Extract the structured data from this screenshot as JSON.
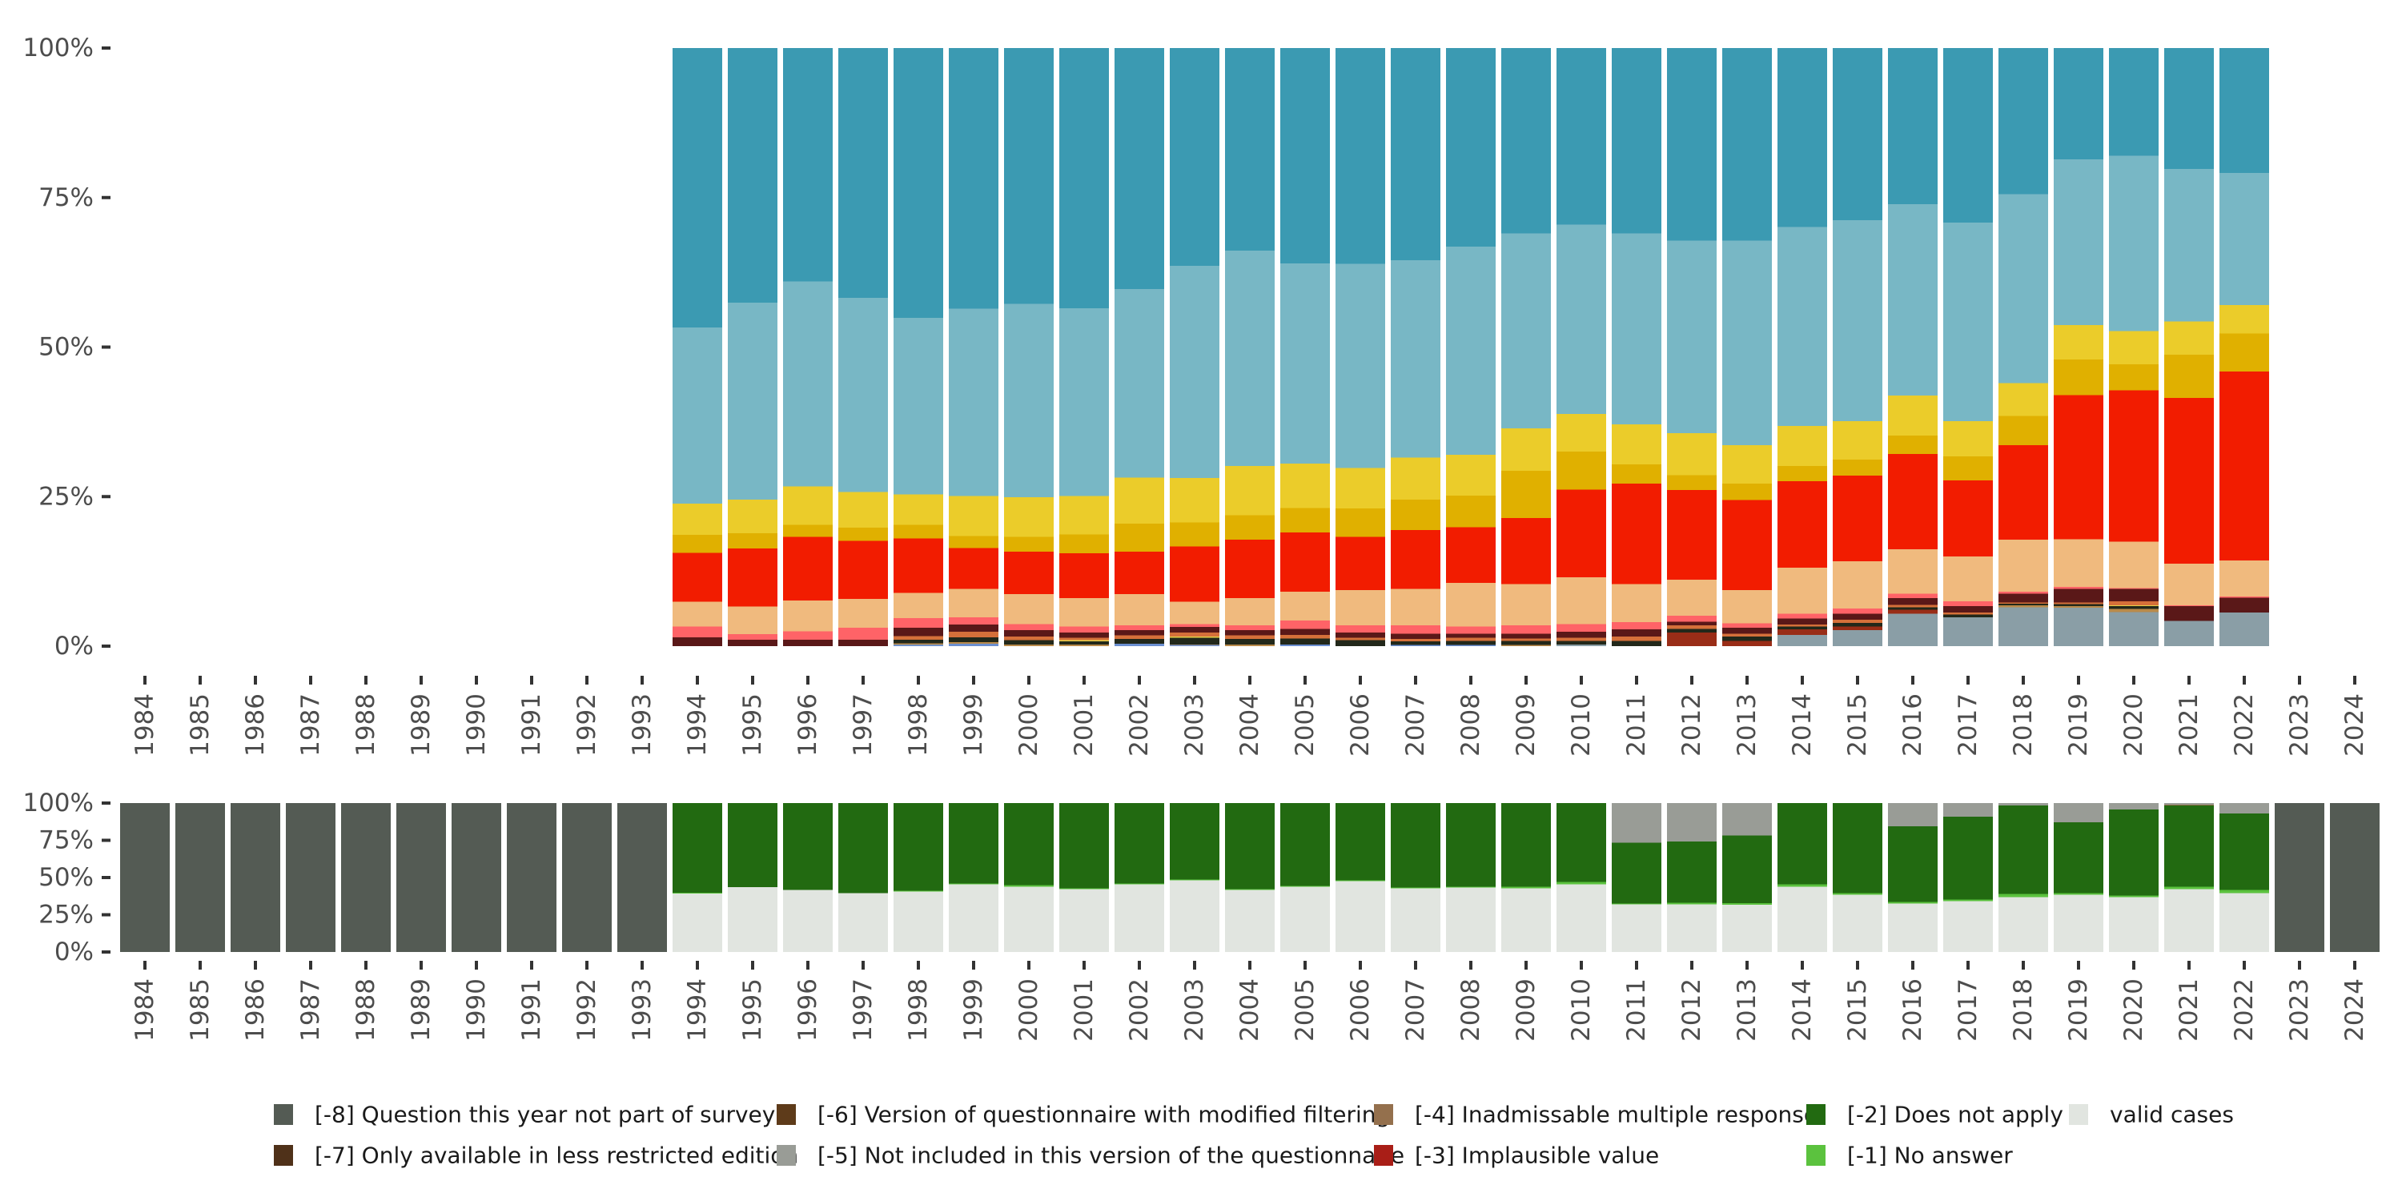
{
  "chart_data": [
    {
      "id": "top",
      "type": "bar",
      "stacked": true,
      "normalized": true,
      "title": "",
      "xlabel": "",
      "ylabel": "",
      "ylim": [
        0,
        100
      ],
      "y_ticks": [
        "0%",
        "25%",
        "50%",
        "75%",
        "100%"
      ],
      "y_tick_values": [
        0,
        25,
        50,
        75,
        100
      ],
      "categories": [
        "1984",
        "1985",
        "1986",
        "1987",
        "1988",
        "1989",
        "1990",
        "1991",
        "1992",
        "1993",
        "1994",
        "1995",
        "1996",
        "1997",
        "1998",
        "1999",
        "2000",
        "2001",
        "2002",
        "2003",
        "2004",
        "2005",
        "2006",
        "2007",
        "2008",
        "2009",
        "2010",
        "2011",
        "2012",
        "2013",
        "2014",
        "2015",
        "2016",
        "2017",
        "2018",
        "2019",
        "2020",
        "2021",
        "2022",
        "2023",
        "2024"
      ],
      "legend": "none",
      "series_order_bottom_to_top": [
        "blue",
        "greyblue",
        "brownred",
        "tan",
        "darkolive",
        "yellowline",
        "orange",
        "maroon",
        "pink",
        "peach",
        "red",
        "darkyellow",
        "yellow",
        "lightblue",
        "teal"
      ],
      "colors": {
        "blue": "#6b8fd0",
        "greyblue": "#8a9ea6",
        "brownred": "#992d17",
        "tan": "#b98a4a",
        "darkolive": "#22281a",
        "yellowline": "#e8d24a",
        "orange": "#d5703a",
        "maroon": "#5a1818",
        "pink": "#ff6367",
        "peach": "#f0ba7e",
        "red": "#f21c00",
        "darkyellow": "#e0b000",
        "yellow": "#ebcc2a",
        "lightblue": "#78b7c5",
        "teal": "#3b9ab2"
      },
      "values_by_year": {
        "1994": {
          "maroon": 1.5,
          "pink": 1.8,
          "peach": 4.1,
          "red": 8.2,
          "darkyellow": 3.0,
          "yellow": 5.2,
          "lightblue": 29.5,
          "teal": 46.7
        },
        "1995": {
          "maroon": 1.1,
          "pink": 0.9,
          "peach": 4.6,
          "red": 9.7,
          "darkyellow": 2.6,
          "yellow": 5.6,
          "lightblue": 32.9,
          "teal": 42.6
        },
        "1996": {
          "maroon": 1.1,
          "pink": 1.4,
          "peach": 5.1,
          "red": 10.7,
          "darkyellow": 2.0,
          "yellow": 6.4,
          "lightblue": 34.3,
          "teal": 39.0
        },
        "1997": {
          "maroon": 1.1,
          "pink": 2.0,
          "peach": 4.8,
          "red": 9.7,
          "darkyellow": 2.2,
          "yellow": 6.0,
          "lightblue": 32.4,
          "teal": 41.8
        },
        "1998": {
          "blue": 0.2,
          "greyblue": 0.1,
          "tan": 0.2,
          "darkolive": 0.6,
          "orange": 0.6,
          "maroon": 1.4,
          "pink": 1.6,
          "peach": 4.2,
          "red": 9.1,
          "darkyellow": 2.3,
          "yellow": 5.1,
          "lightblue": 29.5,
          "teal": 45.1
        },
        "1999": {
          "blue": 0.4,
          "tan": 0.3,
          "darkolive": 0.8,
          "orange": 0.9,
          "maroon": 1.2,
          "pink": 1.2,
          "peach": 4.8,
          "red": 6.8,
          "darkyellow": 2.0,
          "yellow": 6.7,
          "lightblue": 31.3,
          "teal": 43.6
        },
        "2000": {
          "tan": 0.3,
          "darkolive": 0.7,
          "orange": 0.6,
          "maroon": 1.1,
          "pink": 1.0,
          "peach": 5.0,
          "red": 7.1,
          "darkyellow": 2.5,
          "yellow": 6.6,
          "lightblue": 32.3,
          "teal": 42.8
        },
        "2001": {
          "tan": 0.3,
          "darkolive": 0.5,
          "yellowline": 0.2,
          "orange": 0.4,
          "maroon": 0.9,
          "pink": 1.0,
          "peach": 4.7,
          "red": 7.5,
          "darkyellow": 3.2,
          "yellow": 6.4,
          "lightblue": 31.4,
          "teal": 43.5
        },
        "2002": {
          "blue": 0.4,
          "darkolive": 0.8,
          "orange": 0.6,
          "maroon": 0.9,
          "pink": 0.8,
          "peach": 5.2,
          "red": 7.1,
          "darkyellow": 4.7,
          "yellow": 7.7,
          "lightblue": 31.5,
          "teal": 40.3
        },
        "2003": {
          "blue": 0.2,
          "tan": 0.1,
          "darkolive": 1.1,
          "yellowline": 0.2,
          "orange": 0.7,
          "maroon": 0.9,
          "pink": 0.5,
          "peach": 3.7,
          "red": 9.3,
          "darkyellow": 4.0,
          "yellow": 7.4,
          "lightblue": 35.5,
          "teal": 36.4
        },
        "2004": {
          "tan": 0.3,
          "darkolive": 0.9,
          "orange": 0.6,
          "maroon": 0.9,
          "pink": 0.8,
          "peach": 4.5,
          "red": 9.8,
          "darkyellow": 4.1,
          "yellow": 8.2,
          "lightblue": 36.0,
          "teal": 33.9
        },
        "2005": {
          "blue": 0.3,
          "darkolive": 1.0,
          "orange": 0.6,
          "maroon": 1.0,
          "pink": 1.4,
          "peach": 4.8,
          "red": 9.9,
          "darkyellow": 4.1,
          "yellow": 7.4,
          "lightblue": 33.5,
          "teal": 36.0
        },
        "2006": {
          "darkolive": 1.0,
          "orange": 0.4,
          "maroon": 0.9,
          "pink": 1.2,
          "peach": 5.9,
          "red": 8.9,
          "darkyellow": 4.7,
          "yellow": 6.8,
          "lightblue": 34.1,
          "teal": 36.1
        },
        "2007": {
          "blue": 0.2,
          "darkolive": 0.6,
          "orange": 0.4,
          "maroon": 0.9,
          "pink": 1.4,
          "peach": 6.1,
          "red": 9.8,
          "darkyellow": 5.1,
          "yellow": 7.0,
          "lightblue": 33.0,
          "teal": 35.5
        },
        "2008": {
          "blue": 0.2,
          "darkolive": 0.7,
          "orange": 0.5,
          "maroon": 0.7,
          "pink": 1.2,
          "peach": 7.3,
          "red": 9.3,
          "darkyellow": 5.3,
          "yellow": 6.8,
          "lightblue": 34.8,
          "teal": 33.2
        },
        "2009": {
          "tan": 0.2,
          "darkolive": 0.7,
          "orange": 0.4,
          "maroon": 0.8,
          "pink": 1.4,
          "peach": 6.9,
          "red": 11.0,
          "darkyellow": 7.9,
          "yellow": 7.1,
          "lightblue": 32.6,
          "teal": 31.0
        },
        "2010": {
          "greyblue": 0.3,
          "darkolive": 0.6,
          "orange": 0.5,
          "maroon": 1.0,
          "pink": 1.3,
          "peach": 7.8,
          "red": 14.7,
          "darkyellow": 6.3,
          "yellow": 6.3,
          "lightblue": 31.7,
          "teal": 29.5
        },
        "2011": {
          "darkolive": 0.9,
          "orange": 0.7,
          "maroon": 1.2,
          "pink": 1.2,
          "peach": 6.4,
          "red": 16.8,
          "darkyellow": 3.2,
          "yellow": 6.7,
          "lightblue": 31.9,
          "teal": 31.0
        },
        "2012": {
          "brownred": 2.3,
          "darkolive": 0.6,
          "orange": 0.6,
          "maroon": 0.6,
          "pink": 1.0,
          "peach": 6.0,
          "red": 15.0,
          "darkyellow": 2.5,
          "yellow": 7.0,
          "lightblue": 32.2,
          "teal": 32.2
        },
        "2013": {
          "brownred": 0.9,
          "darkolive": 0.7,
          "orange": 0.5,
          "maroon": 1.0,
          "pink": 0.7,
          "peach": 5.6,
          "red": 15.0,
          "darkyellow": 2.8,
          "yellow": 6.4,
          "lightblue": 34.2,
          "teal": 32.2
        },
        "2014": {
          "greyblue": 1.9,
          "brownred": 0.9,
          "darkolive": 0.5,
          "orange": 0.3,
          "maroon": 1.0,
          "pink": 0.8,
          "peach": 7.7,
          "red": 14.5,
          "darkyellow": 2.5,
          "yellow": 6.7,
          "lightblue": 33.3,
          "teal": 29.9
        },
        "2015": {
          "greyblue": 2.7,
          "brownred": 0.6,
          "darkolive": 0.6,
          "orange": 0.5,
          "maroon": 1.0,
          "pink": 0.9,
          "peach": 7.9,
          "red": 14.3,
          "darkyellow": 2.7,
          "yellow": 6.4,
          "lightblue": 33.6,
          "teal": 28.8
        },
        "2016": {
          "greyblue": 5.4,
          "brownred": 0.7,
          "darkolive": 0.4,
          "orange": 0.4,
          "maroon": 1.1,
          "pink": 0.8,
          "peach": 7.4,
          "red": 15.9,
          "darkyellow": 3.1,
          "yellow": 6.7,
          "lightblue": 32.0,
          "teal": 26.1
        },
        "2017": {
          "greyblue": 4.8,
          "darkolive": 0.5,
          "orange": 0.3,
          "maroon": 1.1,
          "pink": 0.8,
          "peach": 7.5,
          "red": 12.7,
          "darkyellow": 4.0,
          "yellow": 5.9,
          "lightblue": 33.2,
          "teal": 29.2
        },
        "2018": {
          "greyblue": 6.5,
          "tan": 0.3,
          "darkolive": 0.3,
          "orange": 0.2,
          "maroon": 1.5,
          "pink": 0.3,
          "peach": 8.7,
          "red": 15.8,
          "darkyellow": 4.9,
          "yellow": 5.5,
          "lightblue": 31.6,
          "teal": 24.4
        },
        "2019": {
          "greyblue": 6.4,
          "tan": 0.3,
          "darkolive": 0.3,
          "orange": 0.3,
          "maroon": 2.3,
          "pink": 0.3,
          "peach": 8.0,
          "red": 24.1,
          "darkyellow": 5.9,
          "yellow": 5.8,
          "lightblue": 27.7,
          "teal": 18.6
        },
        "2020": {
          "greyblue": 5.7,
          "tan": 0.5,
          "darkolive": 0.5,
          "yellowline": 0.1,
          "orange": 0.7,
          "maroon": 2.1,
          "pink": 0.1,
          "peach": 7.8,
          "red": 25.3,
          "darkyellow": 4.3,
          "yellow": 5.6,
          "lightblue": 29.3,
          "teal": 18.0
        },
        "2021": {
          "greyblue": 4.2,
          "maroon": 2.5,
          "pink": 0.1,
          "peach": 7.0,
          "red": 27.7,
          "darkyellow": 7.2,
          "yellow": 5.6,
          "lightblue": 25.5,
          "teal": 20.2
        },
        "2022": {
          "greyblue": 5.6,
          "maroon": 2.5,
          "pink": 0.2,
          "peach": 6.0,
          "red": 31.6,
          "darkyellow": 6.4,
          "yellow": 4.7,
          "lightblue": 22.1,
          "teal": 20.9
        }
      }
    },
    {
      "id": "bottom",
      "type": "bar",
      "stacked": true,
      "normalized": true,
      "title": "",
      "xlabel": "",
      "ylabel": "",
      "ylim": [
        0,
        100
      ],
      "y_ticks": [
        "0%",
        "25%",
        "50%",
        "75%",
        "100%"
      ],
      "y_tick_values": [
        0,
        25,
        50,
        75,
        100
      ],
      "categories": [
        "1984",
        "1985",
        "1986",
        "1987",
        "1988",
        "1989",
        "1990",
        "1991",
        "1992",
        "1993",
        "1994",
        "1995",
        "1996",
        "1997",
        "1998",
        "1999",
        "2000",
        "2001",
        "2002",
        "2003",
        "2004",
        "2005",
        "2006",
        "2007",
        "2008",
        "2009",
        "2010",
        "2011",
        "2012",
        "2013",
        "2014",
        "2015",
        "2016",
        "2017",
        "2018",
        "2019",
        "2020",
        "2021",
        "2022",
        "2023",
        "2024"
      ],
      "series_order_bottom_to_top": [
        "valid",
        "m1",
        "m2",
        "m3",
        "m4",
        "m5",
        "m6",
        "m7",
        "m8"
      ],
      "legend_placement": "bottom",
      "legend": [
        {
          "key": "m8",
          "label": "[-8] Question this year not part of survey",
          "color": "#545b54"
        },
        {
          "key": "m7",
          "label": "[-7] Only available in less restricted edition",
          "color": "#4f3119"
        },
        {
          "key": "m6",
          "label": "[-6] Version of questionnaire with modified filtering",
          "color": "#5e3b1a"
        },
        {
          "key": "m5",
          "label": "[-5] Not included in this version of the questionnaire",
          "color": "#999c96"
        },
        {
          "key": "m4",
          "label": "[-4] Inadmissable multiple response",
          "color": "#94704d"
        },
        {
          "key": "m3",
          "label": "[-3] Implausible value",
          "color": "#a91e17"
        },
        {
          "key": "m2",
          "label": "[-2] Does not apply",
          "color": "#226a11"
        },
        {
          "key": "m1",
          "label": "[-1] No answer",
          "color": "#5bc23e"
        },
        {
          "key": "valid",
          "label": "valid cases",
          "color": "#e1e5e0"
        }
      ],
      "values_by_year": {
        "1984": {
          "m8": 100
        },
        "1985": {
          "m8": 100
        },
        "1986": {
          "m8": 100
        },
        "1987": {
          "m8": 100
        },
        "1988": {
          "m8": 100
        },
        "1989": {
          "m8": 100
        },
        "1990": {
          "m8": 100
        },
        "1991": {
          "m8": 100
        },
        "1992": {
          "m8": 100
        },
        "1993": {
          "m8": 100
        },
        "1994": {
          "valid": 39.3,
          "m1": 0.4,
          "m2": 60.3
        },
        "1995": {
          "valid": 43.6,
          "m2": 56.4
        },
        "1996": {
          "valid": 41.7,
          "m2": 58.3
        },
        "1997": {
          "valid": 39.6,
          "m2": 60.4
        },
        "1998": {
          "valid": 40.6,
          "m1": 0.5,
          "m2": 58.9
        },
        "1999": {
          "valid": 45.5,
          "m1": 0.5,
          "m2": 54.0
        },
        "2000": {
          "valid": 43.9,
          "m1": 1.0,
          "m2": 55.1
        },
        "2001": {
          "valid": 42.2,
          "m1": 0.5,
          "m2": 57.3
        },
        "2002": {
          "valid": 45.5,
          "m1": 0.5,
          "m2": 54.0
        },
        "2003": {
          "valid": 48.1,
          "m1": 0.5,
          "m2": 51.4
        },
        "2004": {
          "valid": 41.7,
          "m1": 0.5,
          "m2": 57.8
        },
        "2005": {
          "valid": 43.9,
          "m1": 0.5,
          "m2": 55.6
        },
        "2006": {
          "valid": 47.6,
          "m1": 0.5,
          "m2": 51.9
        },
        "2007": {
          "valid": 42.8,
          "m1": 0.5,
          "m2": 56.7
        },
        "2008": {
          "valid": 43.3,
          "m1": 0.5,
          "m2": 56.2
        },
        "2009": {
          "valid": 42.8,
          "m1": 1.0,
          "m2": 56.2
        },
        "2010": {
          "valid": 45.5,
          "m1": 1.5,
          "m2": 53.0
        },
        "2011": {
          "valid": 32.1,
          "m1": 0.5,
          "m2": 40.7,
          "m5": 26.7
        },
        "2012": {
          "valid": 32.1,
          "m1": 1.0,
          "m2": 41.2,
          "m5": 25.7
        },
        "2013": {
          "valid": 31.6,
          "m1": 1.1,
          "m2": 45.4,
          "m5": 21.9
        },
        "2014": {
          "valid": 43.9,
          "m1": 1.6,
          "m2": 54.5
        },
        "2015": {
          "valid": 38.5,
          "m1": 1.1,
          "m2": 60.4
        },
        "2016": {
          "valid": 32.6,
          "m1": 1.1,
          "m2": 50.8,
          "m5": 15.5
        },
        "2017": {
          "valid": 34.2,
          "m1": 1.1,
          "m2": 55.6,
          "m5": 9.1
        },
        "2018": {
          "valid": 36.9,
          "m1": 2.1,
          "m2": 59.4,
          "m5": 1.6
        },
        "2019": {
          "valid": 38.5,
          "m1": 1.1,
          "m2": 47.6,
          "m5": 12.8
        },
        "2020": {
          "valid": 36.9,
          "m1": 1.1,
          "m2": 57.7,
          "m5": 4.3
        },
        "2021": {
          "valid": 42.2,
          "m1": 1.6,
          "m2": 54.6,
          "m4": 0.5,
          "m5": 1.1
        },
        "2022": {
          "valid": 39.6,
          "m1": 2.1,
          "m2": 51.3,
          "m5": 7.0
        },
        "2023": {
          "m8": 100
        },
        "2024": {
          "m8": 100
        }
      }
    }
  ]
}
